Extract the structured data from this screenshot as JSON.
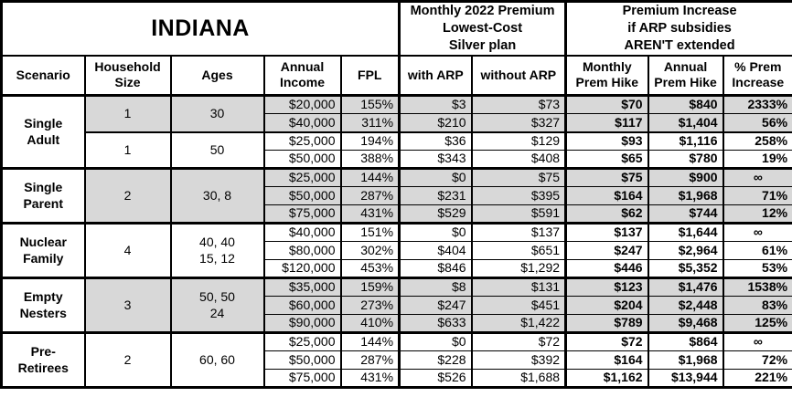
{
  "title": "INDIANA",
  "header_groups": {
    "premium": "Monthly 2022 Premium\nLowest-Cost\nSilver plan",
    "increase": "Premium Increase\nif ARP subsidies\nAREN'T extended"
  },
  "columns": [
    "Scenario",
    "Household\nSize",
    "Ages",
    "Annual\nIncome",
    "FPL",
    "with ARP",
    "without ARP",
    "Monthly\nPrem Hike",
    "Annual\nPrem Hike",
    "% Prem\nIncrease"
  ],
  "colors": {
    "shaded_row": "#d8d8d8",
    "border": "#000000",
    "text": "#000000",
    "background": "#ffffff"
  },
  "groups": [
    {
      "scenario": "Single Adult",
      "subgroups": [
        {
          "household": "1",
          "ages": "30",
          "shaded": true,
          "rows": [
            {
              "income": "$20,000",
              "fpl": "155%",
              "with_arp": "$3",
              "without_arp": "$73",
              "monthly_hike": "$70",
              "annual_hike": "$840",
              "pct_increase": "2333%"
            },
            {
              "income": "$40,000",
              "fpl": "311%",
              "with_arp": "$210",
              "without_arp": "$327",
              "monthly_hike": "$117",
              "annual_hike": "$1,404",
              "pct_increase": "56%"
            }
          ]
        },
        {
          "household": "1",
          "ages": "50",
          "shaded": false,
          "rows": [
            {
              "income": "$25,000",
              "fpl": "194%",
              "with_arp": "$36",
              "without_arp": "$129",
              "monthly_hike": "$93",
              "annual_hike": "$1,116",
              "pct_increase": "258%"
            },
            {
              "income": "$50,000",
              "fpl": "388%",
              "with_arp": "$343",
              "without_arp": "$408",
              "monthly_hike": "$65",
              "annual_hike": "$780",
              "pct_increase": "19%"
            }
          ]
        }
      ]
    },
    {
      "scenario": "Single Parent",
      "subgroups": [
        {
          "household": "2",
          "ages": "30, 8",
          "shaded": true,
          "rows": [
            {
              "income": "$25,000",
              "fpl": "144%",
              "with_arp": "$0",
              "without_arp": "$75",
              "monthly_hike": "$75",
              "annual_hike": "$900",
              "pct_increase": "∞"
            },
            {
              "income": "$50,000",
              "fpl": "287%",
              "with_arp": "$231",
              "without_arp": "$395",
              "monthly_hike": "$164",
              "annual_hike": "$1,968",
              "pct_increase": "71%"
            },
            {
              "income": "$75,000",
              "fpl": "431%",
              "with_arp": "$529",
              "without_arp": "$591",
              "monthly_hike": "$62",
              "annual_hike": "$744",
              "pct_increase": "12%"
            }
          ]
        }
      ]
    },
    {
      "scenario": "Nuclear Family",
      "subgroups": [
        {
          "household": "4",
          "ages": "40, 40\n15, 12",
          "shaded": false,
          "rows": [
            {
              "income": "$40,000",
              "fpl": "151%",
              "with_arp": "$0",
              "without_arp": "$137",
              "monthly_hike": "$137",
              "annual_hike": "$1,644",
              "pct_increase": "∞"
            },
            {
              "income": "$80,000",
              "fpl": "302%",
              "with_arp": "$404",
              "without_arp": "$651",
              "monthly_hike": "$247",
              "annual_hike": "$2,964",
              "pct_increase": "61%"
            },
            {
              "income": "$120,000",
              "fpl": "453%",
              "with_arp": "$846",
              "without_arp": "$1,292",
              "monthly_hike": "$446",
              "annual_hike": "$5,352",
              "pct_increase": "53%"
            }
          ]
        }
      ]
    },
    {
      "scenario": "Empty Nesters",
      "subgroups": [
        {
          "household": "3",
          "ages": "50, 50\n24",
          "shaded": true,
          "rows": [
            {
              "income": "$35,000",
              "fpl": "159%",
              "with_arp": "$8",
              "without_arp": "$131",
              "monthly_hike": "$123",
              "annual_hike": "$1,476",
              "pct_increase": "1538%"
            },
            {
              "income": "$60,000",
              "fpl": "273%",
              "with_arp": "$247",
              "without_arp": "$451",
              "monthly_hike": "$204",
              "annual_hike": "$2,448",
              "pct_increase": "83%"
            },
            {
              "income": "$90,000",
              "fpl": "410%",
              "with_arp": "$633",
              "without_arp": "$1,422",
              "monthly_hike": "$789",
              "annual_hike": "$9,468",
              "pct_increase": "125%"
            }
          ]
        }
      ]
    },
    {
      "scenario": "Pre-Retirees",
      "subgroups": [
        {
          "household": "2",
          "ages": "60, 60",
          "shaded": false,
          "rows": [
            {
              "income": "$25,000",
              "fpl": "144%",
              "with_arp": "$0",
              "without_arp": "$72",
              "monthly_hike": "$72",
              "annual_hike": "$864",
              "pct_increase": "∞"
            },
            {
              "income": "$50,000",
              "fpl": "287%",
              "with_arp": "$228",
              "without_arp": "$392",
              "monthly_hike": "$164",
              "annual_hike": "$1,968",
              "pct_increase": "72%"
            },
            {
              "income": "$75,000",
              "fpl": "431%",
              "with_arp": "$526",
              "without_arp": "$1,688",
              "monthly_hike": "$1,162",
              "annual_hike": "$13,944",
              "pct_increase": "221%"
            }
          ]
        }
      ]
    }
  ]
}
